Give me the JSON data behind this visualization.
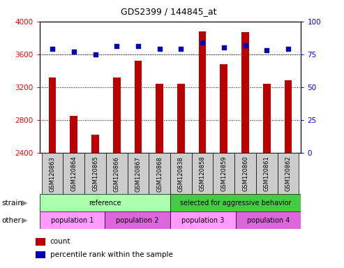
{
  "title": "GDS2399 / 144845_at",
  "samples": [
    "GSM120863",
    "GSM120864",
    "GSM120865",
    "GSM120866",
    "GSM120867",
    "GSM120868",
    "GSM120838",
    "GSM120858",
    "GSM120859",
    "GSM120860",
    "GSM120861",
    "GSM120862"
  ],
  "counts": [
    3320,
    2850,
    2620,
    3320,
    3520,
    3240,
    3240,
    3880,
    3480,
    3870,
    3240,
    3280
  ],
  "percentile_ranks": [
    79,
    77,
    75,
    81,
    81,
    79,
    79,
    84,
    80,
    82,
    78,
    79
  ],
  "ylim_left": [
    2400,
    4000
  ],
  "ylim_right": [
    0,
    100
  ],
  "yticks_left": [
    2400,
    2800,
    3200,
    3600,
    4000
  ],
  "yticks_right": [
    0,
    25,
    50,
    75,
    100
  ],
  "bar_color": "#bb0000",
  "dot_color": "#0000bb",
  "strain_groups": [
    {
      "label": "reference",
      "start": 0,
      "end": 6,
      "color": "#aaffaa"
    },
    {
      "label": "selected for aggressive behavior",
      "start": 6,
      "end": 12,
      "color": "#44cc44"
    }
  ],
  "other_groups": [
    {
      "label": "population 1",
      "start": 0,
      "end": 3,
      "color": "#ff99ff"
    },
    {
      "label": "population 2",
      "start": 3,
      "end": 6,
      "color": "#dd66dd"
    },
    {
      "label": "population 3",
      "start": 6,
      "end": 9,
      "color": "#ff99ff"
    },
    {
      "label": "population 4",
      "start": 9,
      "end": 12,
      "color": "#dd66dd"
    }
  ],
  "legend_count_color": "#bb0000",
  "legend_pct_color": "#0000bb",
  "label_bg_color": "#cccccc",
  "fig_width": 4.93,
  "fig_height": 3.84,
  "dpi": 100
}
